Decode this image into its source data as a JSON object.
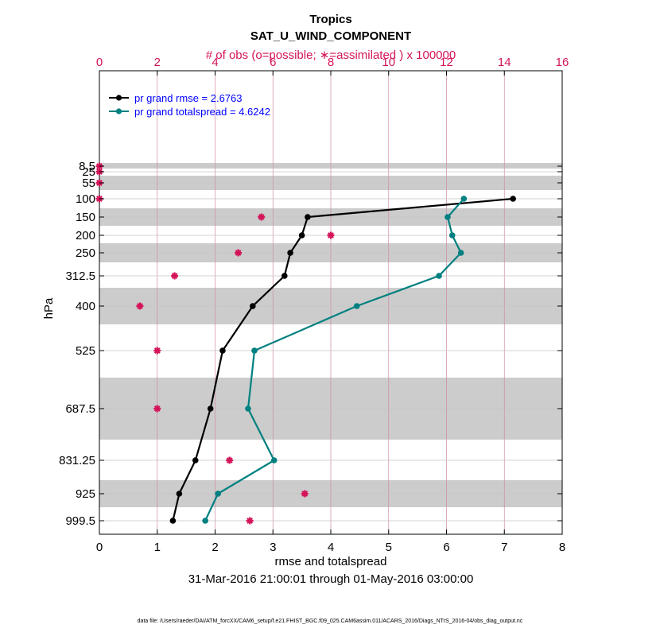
{
  "chart_data": {
    "type": "line",
    "title": "Tropics",
    "subtitle": "SAT_U_WIND_COMPONENT",
    "top_axis_label": "# of obs (o=possible; ∗=assimilated ) x 100000",
    "xlabel": "rmse and totalspread",
    "ylabel": "hPa",
    "date_range": "31-Mar-2016 21:00:01 through 01-May-2016 03:00:00",
    "footnote": "data file: /Users/raeder/DAI/ATM_forcXX/CAM6_setup/f.e21.FHIST_BGC.f09_025.CAM6assim.011/ACARS_2016/Diags_NTrS_2016-04/obs_diag_output.nc",
    "xlim": [
      0,
      8
    ],
    "xticks": [
      "0",
      "1",
      "2",
      "3",
      "4",
      "5",
      "6",
      "7",
      "8"
    ],
    "top_xlim": [
      0,
      16
    ],
    "top_xticks": [
      "0",
      "2",
      "4",
      "6",
      "8",
      "10",
      "12",
      "14",
      "16"
    ],
    "levels": [
      "8.5",
      "25",
      "55",
      "100",
      "150",
      "200",
      "250",
      "312.5",
      "400",
      "525",
      "687.5",
      "831.25",
      "925",
      "999.5"
    ],
    "grid": true,
    "legend_position": "top-left",
    "colors": {
      "rmse": "#000000",
      "totalspread": "#008080",
      "obs": "#d4145a",
      "top_axis": "#d4145a",
      "band": "#cccccc",
      "legend_text": "#0000ff"
    },
    "series": [
      {
        "name": "pr grand rmse = 2.6763",
        "key": "rmse",
        "levels": [
          "100",
          "150",
          "200",
          "250",
          "312.5",
          "400",
          "525",
          "687.5",
          "831.25",
          "925",
          "999.5"
        ],
        "values": [
          7.15,
          3.6,
          3.5,
          3.3,
          3.2,
          2.65,
          2.13,
          1.92,
          1.66,
          1.38,
          1.27
        ]
      },
      {
        "name": "pr grand totalspread = 4.6242",
        "key": "totalspread",
        "levels": [
          "100",
          "150",
          "200",
          "250",
          "312.5",
          "400",
          "525",
          "687.5",
          "831.25",
          "925",
          "999.5"
        ],
        "values": [
          6.3,
          6.02,
          6.1,
          6.25,
          5.87,
          4.45,
          2.68,
          2.57,
          3.02,
          2.05,
          1.83
        ]
      }
    ],
    "obs_assimilated": {
      "levels": [
        "8.5",
        "25",
        "55",
        "100",
        "150",
        "200",
        "250",
        "312.5",
        "400",
        "525",
        "687.5",
        "831.25",
        "925",
        "999.5"
      ],
      "values": [
        0.0,
        0.0,
        0.0,
        0.0,
        5.6,
        8.0,
        4.8,
        2.6,
        1.4,
        2.0,
        2.0,
        4.5,
        7.1,
        5.2
      ]
    }
  }
}
